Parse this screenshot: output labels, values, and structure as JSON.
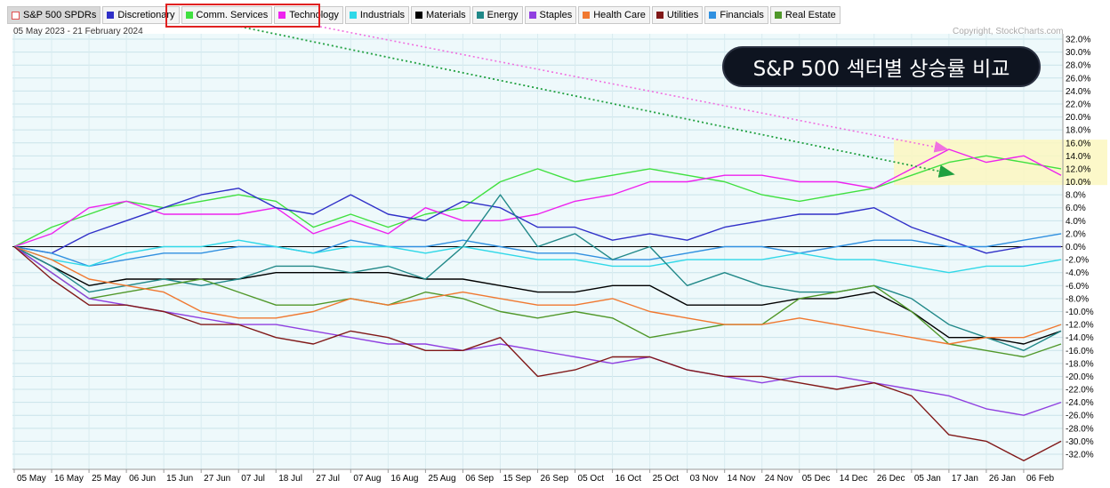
{
  "legend": [
    {
      "label": "S&P 500 SPDRs",
      "color": "#ffffff"
    },
    {
      "label": "Discretionary",
      "color": "#3030c8"
    },
    {
      "label": "Comm. Services",
      "color": "#40e040"
    },
    {
      "label": "Technology",
      "color": "#ee22ee"
    },
    {
      "label": "Industrials",
      "color": "#30d8e8"
    },
    {
      "label": "Materials",
      "color": "#000000"
    },
    {
      "label": "Energy",
      "color": "#208888"
    },
    {
      "label": "Staples",
      "color": "#9040e0"
    },
    {
      "label": "Health Care",
      "color": "#f07830"
    },
    {
      "label": "Utilities",
      "color": "#801818"
    },
    {
      "label": "Financials",
      "color": "#3090e0"
    },
    {
      "label": "Real Estate",
      "color": "#50982a"
    }
  ],
  "header": {
    "date_range": "05 May 2023 - 21 February 2024",
    "copyright": "Copyright, StockCharts.com"
  },
  "overlay": {
    "title": "S&P 500 섹터별 상승률 비교"
  },
  "chart_data": {
    "type": "line",
    "ylim": [
      -33,
      33
    ],
    "y_ticks": [
      "32.0%",
      "30.0%",
      "28.0%",
      "26.0%",
      "24.0%",
      "22.0%",
      "20.0%",
      "18.0%",
      "16.0%",
      "14.0%",
      "12.0%",
      "10.0%",
      "8.0%",
      "6.0%",
      "4.0%",
      "2.0%",
      "0.0%",
      "-2.0%",
      "-4.0%",
      "-6.0%",
      "-8.0%",
      "-10.0%",
      "-12.0%",
      "-14.0%",
      "-16.0%",
      "-18.0%",
      "-20.0%",
      "-22.0%",
      "-24.0%",
      "-26.0%",
      "-28.0%",
      "-30.0%",
      "-32.0%"
    ],
    "x_ticks": [
      "05 May",
      "16 May",
      "25 May",
      "06 Jun",
      "15 Jun",
      "27 Jun",
      "07 Jul",
      "18 Jul",
      "27 Jul",
      "07 Aug",
      "16 Aug",
      "25 Aug",
      "06 Sep",
      "15 Sep",
      "26 Sep",
      "05 Oct",
      "16 Oct",
      "25 Oct",
      "03 Nov",
      "14 Nov",
      "24 Nov",
      "05 Dec",
      "14 Dec",
      "26 Dec",
      "05 Jan",
      "17 Jan",
      "26 Jan",
      "06 Feb"
    ],
    "x": [
      "05 May",
      "16 May",
      "25 May",
      "06 Jun",
      "15 Jun",
      "27 Jun",
      "07 Jul",
      "18 Jul",
      "27 Jul",
      "07 Aug",
      "16 Aug",
      "25 Aug",
      "06 Sep",
      "15 Sep",
      "26 Sep",
      "05 Oct",
      "16 Oct",
      "25 Oct",
      "03 Nov",
      "14 Nov",
      "24 Nov",
      "05 Dec",
      "14 Dec",
      "26 Dec",
      "05 Jan",
      "17 Jan",
      "26 Jan",
      "06 Feb",
      "21 Feb"
    ],
    "highlight_band": [
      9.5,
      16.5
    ],
    "series": [
      {
        "name": "Comm. Services",
        "color": "#40e040",
        "values": [
          0,
          3,
          5,
          7,
          6,
          7,
          8,
          7,
          3,
          5,
          3,
          5,
          6,
          10,
          12,
          10,
          11,
          12,
          11,
          10,
          8,
          7,
          8,
          9,
          11,
          13,
          14,
          13,
          12
        ]
      },
      {
        "name": "Technology",
        "color": "#ee22ee",
        "values": [
          0,
          2,
          6,
          7,
          5,
          5,
          5,
          6,
          2,
          4,
          2,
          6,
          4,
          4,
          5,
          7,
          8,
          10,
          10,
          11,
          11,
          10,
          10,
          9,
          12,
          15,
          13,
          14,
          11
        ]
      },
      {
        "name": "Discretionary",
        "color": "#3030c8",
        "values": [
          0,
          -1,
          2,
          4,
          6,
          8,
          9,
          6,
          5,
          8,
          5,
          4,
          7,
          6,
          3,
          3,
          1,
          2,
          1,
          3,
          4,
          5,
          5,
          6,
          3,
          1,
          -1,
          0,
          0
        ]
      },
      {
        "name": "Financials",
        "color": "#3090e0",
        "values": [
          0,
          -1,
          -3,
          -2,
          -1,
          -1,
          0,
          0,
          -1,
          1,
          0,
          0,
          1,
          0,
          -1,
          -1,
          -2,
          -2,
          -1,
          0,
          0,
          -1,
          0,
          1,
          1,
          0,
          0,
          1,
          2
        ]
      },
      {
        "name": "Industrials",
        "color": "#30d8e8",
        "values": [
          0,
          -2,
          -3,
          -1,
          0,
          0,
          1,
          0,
          -1,
          0,
          0,
          -1,
          0,
          -1,
          -2,
          -2,
          -3,
          -3,
          -2,
          -2,
          -2,
          -1,
          -2,
          -2,
          -3,
          -4,
          -3,
          -3,
          -2
        ]
      },
      {
        "name": "Materials",
        "color": "#000000",
        "values": [
          0,
          -3,
          -6,
          -5,
          -5,
          -5,
          -5,
          -4,
          -4,
          -4,
          -4,
          -5,
          -5,
          -6,
          -7,
          -7,
          -6,
          -6,
          -9,
          -9,
          -9,
          -8,
          -8,
          -7,
          -10,
          -14,
          -14,
          -15,
          -13
        ]
      },
      {
        "name": "Energy",
        "color": "#208888",
        "values": [
          0,
          -3,
          -7,
          -6,
          -5,
          -6,
          -5,
          -3,
          -3,
          -4,
          -3,
          -5,
          0,
          8,
          0,
          2,
          -2,
          0,
          -6,
          -4,
          -6,
          -7,
          -7,
          -6,
          -8,
          -12,
          -14,
          -16,
          -13
        ]
      },
      {
        "name": "Real Estate",
        "color": "#50982a",
        "values": [
          0,
          -4,
          -8,
          -7,
          -6,
          -5,
          -7,
          -9,
          -9,
          -8,
          -9,
          -7,
          -8,
          -10,
          -11,
          -10,
          -11,
          -14,
          -13,
          -12,
          -12,
          -8,
          -7,
          -6,
          -10,
          -15,
          -16,
          -17,
          -15
        ]
      },
      {
        "name": "Health Care",
        "color": "#f07830",
        "values": [
          0,
          -2,
          -5,
          -6,
          -7,
          -10,
          -11,
          -11,
          -10,
          -8,
          -9,
          -8,
          -7,
          -8,
          -9,
          -9,
          -8,
          -10,
          -11,
          -12,
          -12,
          -11,
          -12,
          -13,
          -14,
          -15,
          -14,
          -14,
          -12
        ]
      },
      {
        "name": "Staples",
        "color": "#9040e0",
        "values": [
          0,
          -4,
          -8,
          -9,
          -10,
          -11,
          -12,
          -12,
          -13,
          -14,
          -15,
          -15,
          -16,
          -15,
          -16,
          -17,
          -18,
          -17,
          -19,
          -20,
          -21,
          -20,
          -20,
          -21,
          -22,
          -23,
          -25,
          -26,
          -24
        ]
      },
      {
        "name": "Utilities",
        "color": "#801818",
        "values": [
          0,
          -5,
          -9,
          -9,
          -10,
          -12,
          -12,
          -14,
          -15,
          -13,
          -14,
          -16,
          -16,
          -14,
          -20,
          -19,
          -17,
          -17,
          -19,
          -20,
          -20,
          -21,
          -22,
          -21,
          -23,
          -29,
          -30,
          -33,
          -30
        ]
      }
    ]
  }
}
